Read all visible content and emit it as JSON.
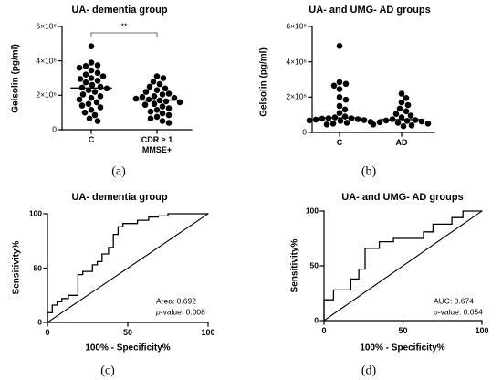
{
  "chart_data": [
    {
      "type": "scatter",
      "panel_label": "(a)",
      "title": "UA- dementia group",
      "ylabel": "Gelsolin (pg/ml)",
      "categories": [
        "C",
        "CDR ≥ 1\nMMSE+"
      ],
      "ylim": [
        0,
        6000000
      ],
      "yticks": [
        0,
        2000000,
        4000000,
        6000000
      ],
      "ytick_labels": [
        "0",
        "2×10⁶",
        "4×10⁶",
        "6×10⁶"
      ],
      "values": [
        [
          4850000,
          3900000,
          3750000,
          3700000,
          3600000,
          3450000,
          3300000,
          3200000,
          3100000,
          3000000,
          2950000,
          2850000,
          2750000,
          2600000,
          2500000,
          2450000,
          2400000,
          2300000,
          2200000,
          2050000,
          1950000,
          1850000,
          1750000,
          1600000,
          1500000,
          1400000,
          1300000,
          1150000,
          1000000,
          850000,
          650000,
          500000
        ],
        [
          3100000,
          3000000,
          2800000,
          2650000,
          2500000,
          2400000,
          2300000,
          2200000,
          2100000,
          2050000,
          1950000,
          1900000,
          1850000,
          1800000,
          1750000,
          1700000,
          1650000,
          1600000,
          1500000,
          1450000,
          1350000,
          1250000,
          1150000,
          1050000,
          950000,
          850000,
          750000,
          650000,
          500000,
          400000
        ]
      ],
      "significance": {
        "groups": [
          0,
          1
        ],
        "label": "**"
      },
      "grid": false
    },
    {
      "type": "scatter",
      "panel_label": "(b)",
      "title": "UA- and UMG- AD groups",
      "ylabel": "Gelsolin (pg/ml)",
      "categories": [
        "C",
        "AD"
      ],
      "ylim": [
        0,
        6000000
      ],
      "yticks": [
        0,
        2000000,
        4000000,
        6000000
      ],
      "ytick_labels": [
        "0",
        "2×10⁶",
        "4×10⁶",
        "6×10⁶"
      ],
      "values": [
        [
          4900000,
          2850000,
          2750000,
          2650000,
          2450000,
          2000000,
          1850000,
          1500000,
          1300000,
          1100000,
          900000,
          850000,
          800000,
          800000,
          780000,
          750000,
          720000,
          700000,
          680000,
          650000,
          600000,
          550000,
          500000,
          450000
        ],
        [
          2200000,
          1950000,
          1700000,
          1550000,
          1350000,
          1200000,
          1050000,
          950000,
          850000,
          750000,
          700000,
          680000,
          650000,
          620000,
          580000,
          550000,
          500000,
          450000,
          400000,
          350000
        ]
      ],
      "grid": false
    },
    {
      "type": "line",
      "panel_label": "(c)",
      "title": "UA- dementia group",
      "xlabel": "100% - Specificity%",
      "ylabel": "Sensitivity%",
      "xlim": [
        0,
        100
      ],
      "ylim": [
        0,
        100
      ],
      "xticks": [
        0,
        50,
        100
      ],
      "xtick_labels": [
        "0",
        "50",
        "100"
      ],
      "yticks": [
        0,
        50,
        100
      ],
      "ytick_labels": [
        "0",
        "50",
        "100"
      ],
      "series": [
        {
          "x": [
            0,
            0,
            3,
            3,
            6,
            6,
            9,
            9,
            13,
            13,
            19,
            19,
            22,
            22,
            28,
            28,
            31,
            31,
            34,
            34,
            38,
            38,
            41,
            41,
            44,
            44,
            47,
            47,
            56,
            56,
            63,
            63,
            69,
            69,
            75,
            75,
            100
          ],
          "y": [
            0,
            9,
            9,
            16,
            16,
            19,
            19,
            22,
            22,
            25,
            25,
            44,
            44,
            47,
            47,
            53,
            53,
            56,
            56,
            63,
            63,
            69,
            69,
            81,
            81,
            88,
            88,
            91,
            91,
            94,
            94,
            97,
            97,
            98,
            98,
            100,
            100
          ]
        }
      ],
      "reference_line": {
        "x": [
          0,
          100
        ],
        "y": [
          0,
          100
        ]
      },
      "annotations": [
        "Area: 0.692",
        "p-value: 0.008"
      ],
      "annotation_placement": "bottom-right",
      "grid": false
    },
    {
      "type": "line",
      "panel_label": "(d)",
      "title": "UA- and UMG- AD groups",
      "xlabel": "100% - Specificity%",
      "ylabel": "Sensitivity%",
      "xlim": [
        0,
        100
      ],
      "ylim": [
        0,
        100
      ],
      "xticks": [
        0,
        50,
        100
      ],
      "xtick_labels": [
        "0",
        "50",
        "100"
      ],
      "yticks": [
        0,
        50,
        100
      ],
      "ytick_labels": [
        "0",
        "50",
        "100"
      ],
      "series": [
        {
          "x": [
            0,
            0,
            6,
            6,
            17,
            17,
            22,
            22,
            26,
            26,
            35,
            35,
            44,
            44,
            63,
            63,
            69,
            69,
            81,
            81,
            88,
            88,
            100
          ],
          "y": [
            0,
            19,
            19,
            28,
            28,
            38,
            38,
            47,
            47,
            66,
            66,
            72,
            72,
            75,
            75,
            81,
            81,
            88,
            88,
            94,
            94,
            100,
            100
          ]
        }
      ],
      "reference_line": {
        "x": [
          0,
          100
        ],
        "y": [
          0,
          100
        ]
      },
      "annotations": [
        "AUC: 0.674",
        "p-value: 0.054"
      ],
      "annotation_placement": "bottom-right",
      "grid": false
    }
  ]
}
